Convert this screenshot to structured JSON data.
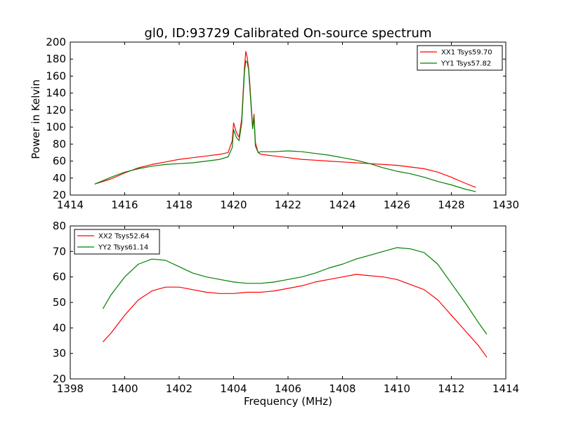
{
  "chart_data": [
    {
      "type": "line",
      "title": "gl0, ID:93729 Calibrated On-source spectrum",
      "xlabel": "",
      "ylabel": "Power in Kelvin",
      "xlim": [
        1414,
        1430
      ],
      "ylim": [
        20,
        200
      ],
      "xticks": [
        "1414",
        "1416",
        "1418",
        "1420",
        "1422",
        "1424",
        "1426",
        "1428",
        "1430"
      ],
      "yticks": [
        "20",
        "40",
        "60",
        "80",
        "100",
        "120",
        "140",
        "160",
        "180",
        "200"
      ],
      "grid": false,
      "legend_position": "top-right",
      "series": [
        {
          "name": "XX1 Tsys59.70",
          "color": "#ff0000",
          "x": [
            1414.9,
            1415.5,
            1416.0,
            1416.5,
            1417.0,
            1417.5,
            1418.0,
            1418.5,
            1419.0,
            1419.5,
            1419.8,
            1419.95,
            1420.0,
            1420.1,
            1420.2,
            1420.3,
            1420.4,
            1420.45,
            1420.5,
            1420.55,
            1420.6,
            1420.7,
            1420.75,
            1420.8,
            1420.9,
            1421.0,
            1421.5,
            1422.0,
            1422.5,
            1423.0,
            1423.5,
            1424.0,
            1424.5,
            1425.0,
            1425.5,
            1426.0,
            1426.5,
            1427.0,
            1427.5,
            1428.0,
            1428.5,
            1428.9
          ],
          "y": [
            33,
            39,
            46,
            52,
            56,
            59,
            62,
            64,
            66,
            68,
            70,
            84,
            105,
            94,
            88,
            110,
            170,
            189,
            182,
            170,
            150,
            100,
            115,
            82,
            70,
            68,
            66,
            64,
            62,
            61,
            60,
            59,
            58,
            57,
            56,
            55,
            53,
            51,
            47,
            41,
            34,
            29
          ]
        },
        {
          "name": "YY1 Tsys57.82",
          "color": "#008000",
          "x": [
            1414.9,
            1415.5,
            1416.0,
            1416.5,
            1417.0,
            1417.5,
            1418.0,
            1418.5,
            1419.0,
            1419.5,
            1419.8,
            1419.95,
            1420.0,
            1420.1,
            1420.2,
            1420.3,
            1420.4,
            1420.45,
            1420.5,
            1420.55,
            1420.6,
            1420.7,
            1420.75,
            1420.8,
            1420.9,
            1421.0,
            1421.5,
            1422.0,
            1422.5,
            1423.0,
            1423.5,
            1424.0,
            1424.5,
            1425.0,
            1425.5,
            1426.0,
            1426.5,
            1427.0,
            1427.5,
            1428.0,
            1428.5,
            1428.9
          ],
          "y": [
            33,
            41,
            47,
            51,
            54,
            56,
            57,
            58,
            60,
            62,
            65,
            76,
            97,
            88,
            84,
            105,
            165,
            178,
            176,
            168,
            145,
            98,
            112,
            78,
            70,
            71,
            71,
            72,
            71,
            69,
            67,
            64,
            61,
            57,
            52,
            48,
            45,
            41,
            36,
            32,
            27,
            24
          ]
        }
      ]
    },
    {
      "type": "line",
      "title": "",
      "xlabel": "Frequency (MHz)",
      "ylabel": "",
      "xlim": [
        1398,
        1414
      ],
      "ylim": [
        20,
        80
      ],
      "xticks": [
        "1398",
        "1400",
        "1402",
        "1404",
        "1406",
        "1408",
        "1410",
        "1412",
        "1414"
      ],
      "yticks": [
        "20",
        "30",
        "40",
        "50",
        "60",
        "70",
        "80"
      ],
      "grid": false,
      "legend_position": "top-left",
      "series": [
        {
          "name": "XX2 Tsys52.64",
          "color": "#ff0000",
          "x": [
            1399.2,
            1399.5,
            1400.0,
            1400.5,
            1401.0,
            1401.5,
            1402.0,
            1402.5,
            1403.0,
            1403.5,
            1404.0,
            1404.5,
            1405.0,
            1405.5,
            1406.0,
            1406.5,
            1407.0,
            1407.5,
            1408.0,
            1408.5,
            1409.0,
            1409.5,
            1410.0,
            1410.5,
            1411.0,
            1411.5,
            1412.0,
            1412.5,
            1413.0,
            1413.3
          ],
          "y": [
            34.5,
            38,
            45,
            51,
            54.5,
            56,
            56,
            55,
            54,
            53.5,
            53.5,
            54,
            54,
            54.5,
            55.5,
            56.5,
            58,
            59,
            60,
            61,
            60.5,
            60,
            59,
            57,
            55,
            51,
            45,
            39,
            33,
            28.5
          ]
        },
        {
          "name": "YY2 Tsys61.14",
          "color": "#008000",
          "x": [
            1399.2,
            1399.5,
            1400.0,
            1400.5,
            1401.0,
            1401.5,
            1402.0,
            1402.5,
            1403.0,
            1403.5,
            1404.0,
            1404.5,
            1405.0,
            1405.5,
            1406.0,
            1406.5,
            1407.0,
            1407.5,
            1408.0,
            1408.5,
            1409.0,
            1409.5,
            1410.0,
            1410.5,
            1411.0,
            1411.5,
            1412.0,
            1412.5,
            1413.0,
            1413.3
          ],
          "y": [
            47.5,
            53,
            60,
            65,
            67,
            66.5,
            64,
            61.5,
            60,
            59,
            58,
            57.5,
            57.5,
            58,
            59,
            60,
            61.5,
            63.5,
            65,
            67,
            68.5,
            70,
            71.5,
            71,
            69.5,
            65,
            57.5,
            50,
            42,
            37.5
          ]
        }
      ]
    }
  ]
}
